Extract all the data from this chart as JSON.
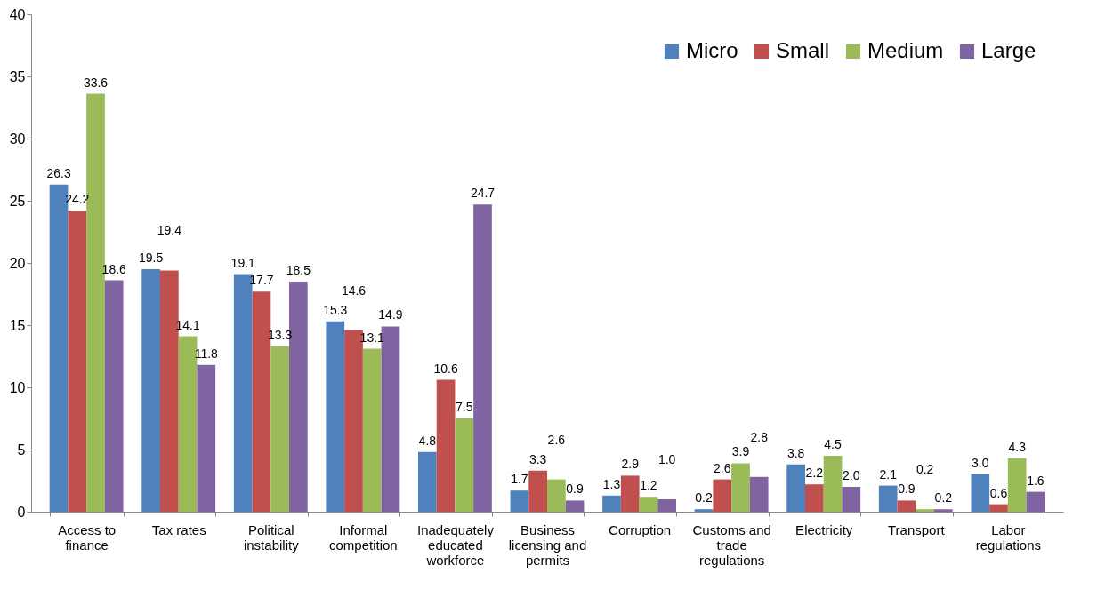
{
  "chart_data": {
    "type": "bar",
    "categories": [
      "Access to finance",
      "Tax rates",
      "Political instability",
      "Informal competition",
      "Inadequately educated workforce",
      "Business licensing and permits",
      "Corruption",
      "Customs and trade regulations",
      "Electricity",
      "Transport",
      "Labor regulations"
    ],
    "series": [
      {
        "name": "Micro",
        "color": "#4f81bd",
        "values": [
          26.3,
          19.5,
          19.1,
          15.3,
          4.8,
          1.7,
          1.3,
          0.2,
          3.8,
          2.1,
          3.0
        ],
        "value_labels": [
          "26.3",
          "19.5",
          "19.1",
          "15.3",
          "4.8",
          "1.7",
          "1.3",
          "0.2",
          "3.8",
          "2.1",
          "3.0"
        ]
      },
      {
        "name": "Small",
        "color": "#c0504d",
        "values": [
          24.2,
          19.4,
          17.7,
          14.6,
          10.6,
          3.3,
          2.9,
          2.6,
          2.2,
          0.9,
          0.6
        ],
        "value_labels": [
          "24.2",
          "19.4",
          "17.7",
          "14.6",
          "10.6",
          "3.3",
          "2.9",
          "2.6",
          "2.2",
          "0.9",
          "0.6"
        ]
      },
      {
        "name": "Medium",
        "color": "#9bbb59",
        "values": [
          33.6,
          14.1,
          13.3,
          13.1,
          7.5,
          2.6,
          1.2,
          3.9,
          4.5,
          0.2,
          4.3
        ],
        "value_labels": [
          "33.6",
          "14.1",
          "13.3",
          "13.1",
          "7.5",
          "2.6",
          "1.2",
          "3.9",
          "4.5",
          "0.2",
          "4.3"
        ]
      },
      {
        "name": "Large",
        "color": "#8064a2",
        "values": [
          18.6,
          11.8,
          18.5,
          14.9,
          24.7,
          0.9,
          1.0,
          2.8,
          2.0,
          0.2,
          1.6
        ],
        "value_labels": [
          "18.6",
          "11.8",
          "18.5",
          "14.9",
          "24.7",
          "0.9",
          "1.0",
          "2.8",
          "2.0",
          "0.2",
          "1.6"
        ]
      }
    ],
    "ylim": [
      0,
      40
    ],
    "yticks": [
      0,
      5,
      10,
      15,
      20,
      25,
      30,
      35,
      40
    ],
    "grid": false,
    "legend": "top right"
  }
}
